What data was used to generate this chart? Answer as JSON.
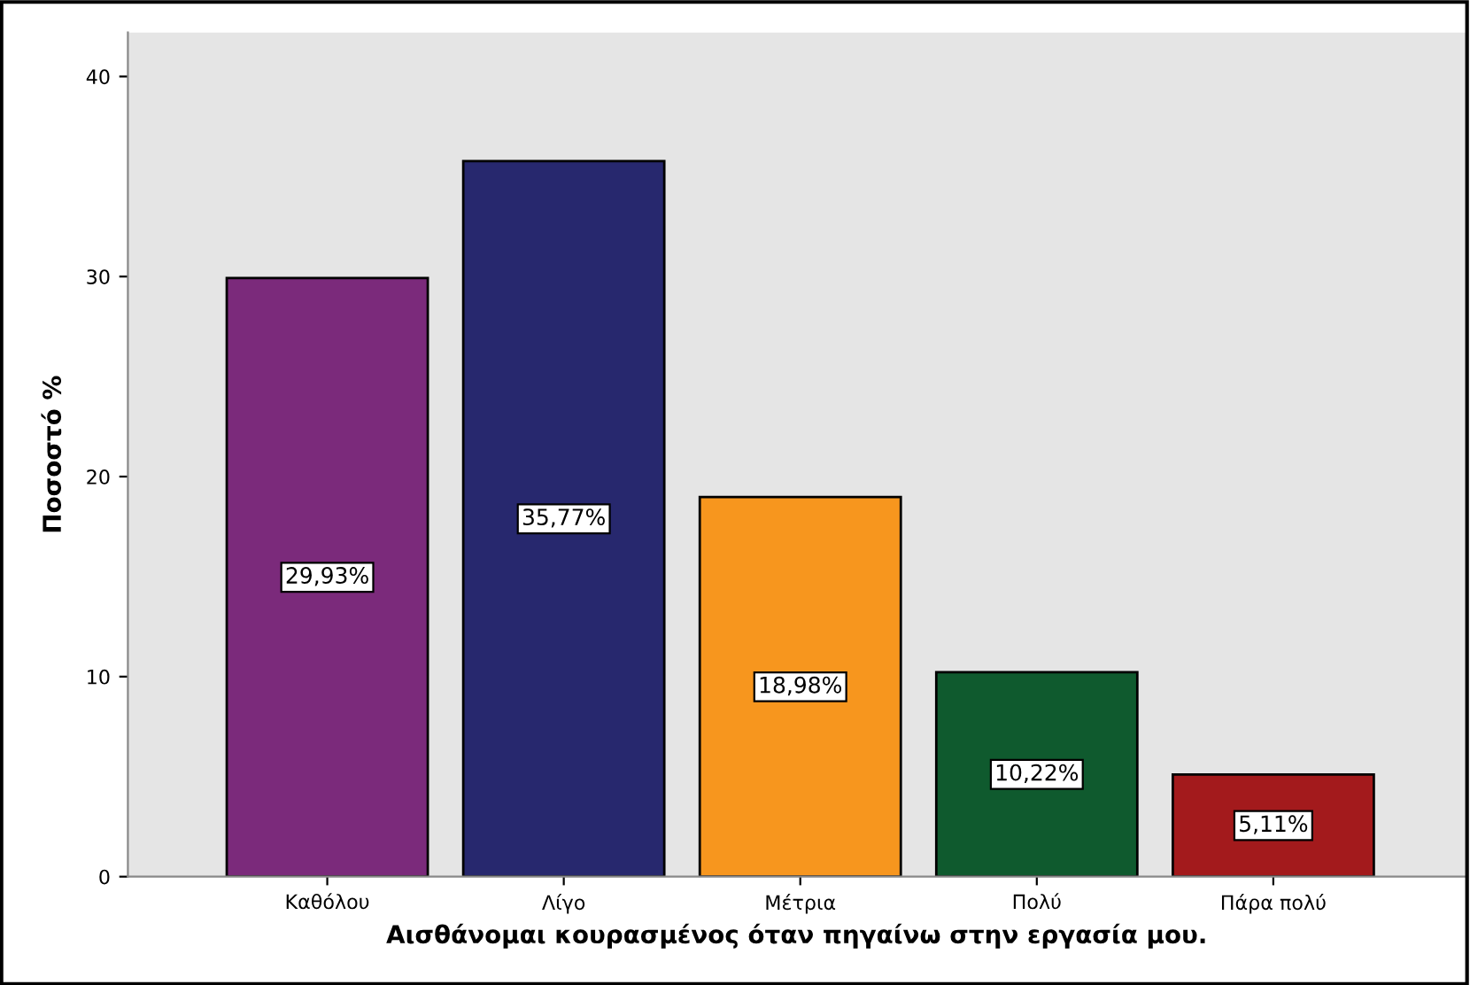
{
  "chart_data": {
    "type": "bar",
    "xlabel": "Αισθάνομαι κουρασμένος όταν πηγαίνω στην εργασία μου.",
    "ylabel": "Ποσοστό %",
    "categories": [
      "Καθόλου",
      "Λίγο",
      "Μέτρια",
      "Πολύ",
      "Πάρα πολύ"
    ],
    "values": [
      29.93,
      35.77,
      18.98,
      10.22,
      5.11
    ],
    "colors": [
      "#7b2a7b",
      "#27286e",
      "#f7961e",
      "#0f5a2e",
      "#a31a1c"
    ],
    "value_labels": [
      "29,93%",
      "35,77%",
      "18,98%",
      "10,22%",
      "5,11%"
    ],
    "ylim": [
      0,
      42.2
    ],
    "yticks": [
      0,
      10,
      20,
      30,
      40
    ],
    "grid": false,
    "legend": false
  }
}
